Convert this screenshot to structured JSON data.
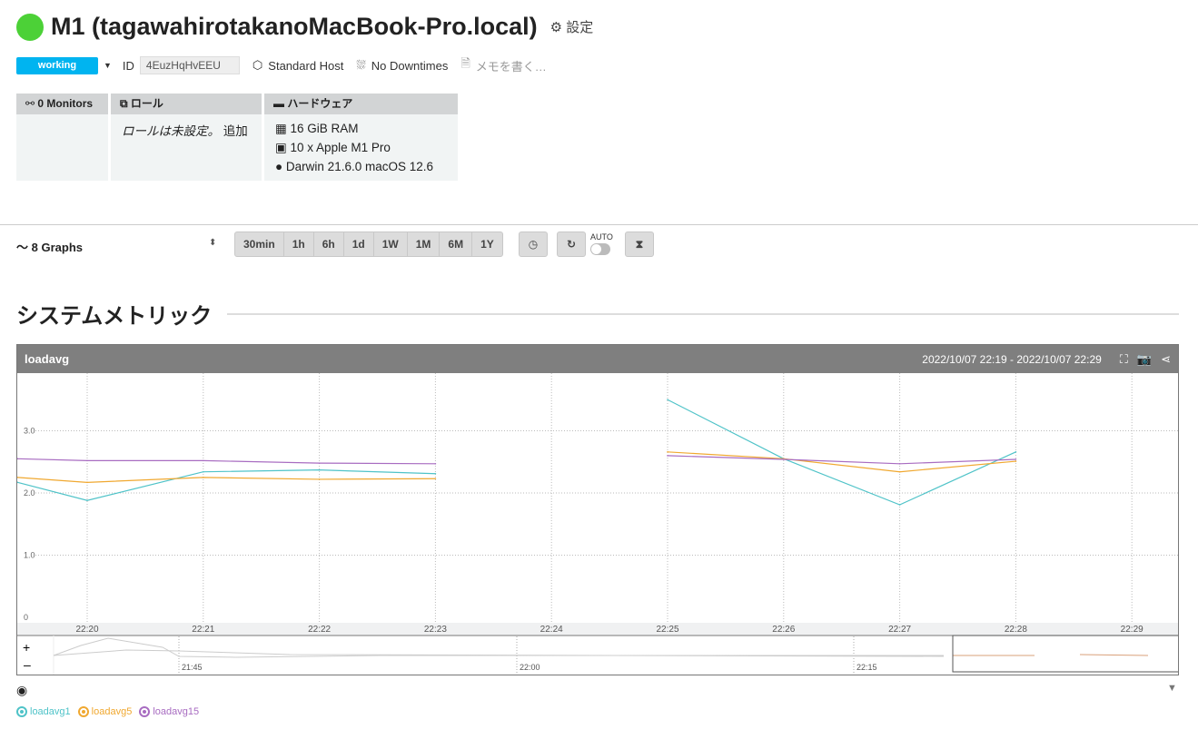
{
  "host": {
    "name": "M1 (tagawahirotakanoMacBook-Pro.local)",
    "status_color": "#4cd137",
    "settings_label": "設定"
  },
  "meta": {
    "status": "working",
    "id_label": "ID",
    "id": "4EuzHqHvEEU",
    "host_type": "Standard Host",
    "downtimes": "No Downtimes",
    "memo_placeholder": "メモを書く…"
  },
  "boxes": {
    "monitors": {
      "title": "0 Monitors"
    },
    "roles": {
      "title": "ロール",
      "empty": "ロールは未設定。",
      "add": "追加"
    },
    "hardware": {
      "title": "ハードウェア",
      "items": [
        "16 GiB RAM",
        "10 x Apple M1 Pro",
        "Darwin 21.6.0 macOS 12.6"
      ]
    }
  },
  "toolbar": {
    "graphs": "8 Graphs",
    "ranges": [
      "30min",
      "1h",
      "6h",
      "1d",
      "1W",
      "1M",
      "6M",
      "1Y"
    ],
    "auto_label": "AUTO",
    "auto_on": false
  },
  "section": {
    "title": "システムメトリック"
  },
  "chart_data": {
    "type": "line",
    "title": "loadavg",
    "range": "2022/10/07 22:19 - 2022/10/07 22:29",
    "x_ticks": [
      "22:20",
      "22:21",
      "22:22",
      "22:23",
      "22:24",
      "22:25",
      "22:26",
      "22:27",
      "22:28",
      "22:29"
    ],
    "y_ticks": [
      "0",
      "1.0",
      "2.0",
      "3.0"
    ],
    "ylim": [
      0,
      3.9
    ],
    "grid": true,
    "legend": "bottom-left",
    "x": [
      "22:19:24",
      "22:20",
      "22:21",
      "22:22",
      "22:23",
      "22:25",
      "22:26",
      "22:27",
      "22:28"
    ],
    "series": [
      {
        "name": "loadavg1",
        "color": "#4fc3c8",
        "values": [
          2.17,
          1.88,
          2.34,
          2.37,
          2.31,
          3.5,
          2.55,
          1.81,
          2.66
        ]
      },
      {
        "name": "loadavg5",
        "color": "#f0a830",
        "values": [
          2.25,
          2.17,
          2.25,
          2.22,
          2.23,
          2.66,
          2.55,
          2.34,
          2.51
        ]
      },
      {
        "name": "loadavg15",
        "color": "#a86cc1",
        "values": [
          2.55,
          2.52,
          2.52,
          2.48,
          2.47,
          2.6,
          2.54,
          2.47,
          2.54
        ]
      }
    ],
    "navigator_ticks": [
      "21:45",
      "22:00",
      "22:15"
    ]
  }
}
